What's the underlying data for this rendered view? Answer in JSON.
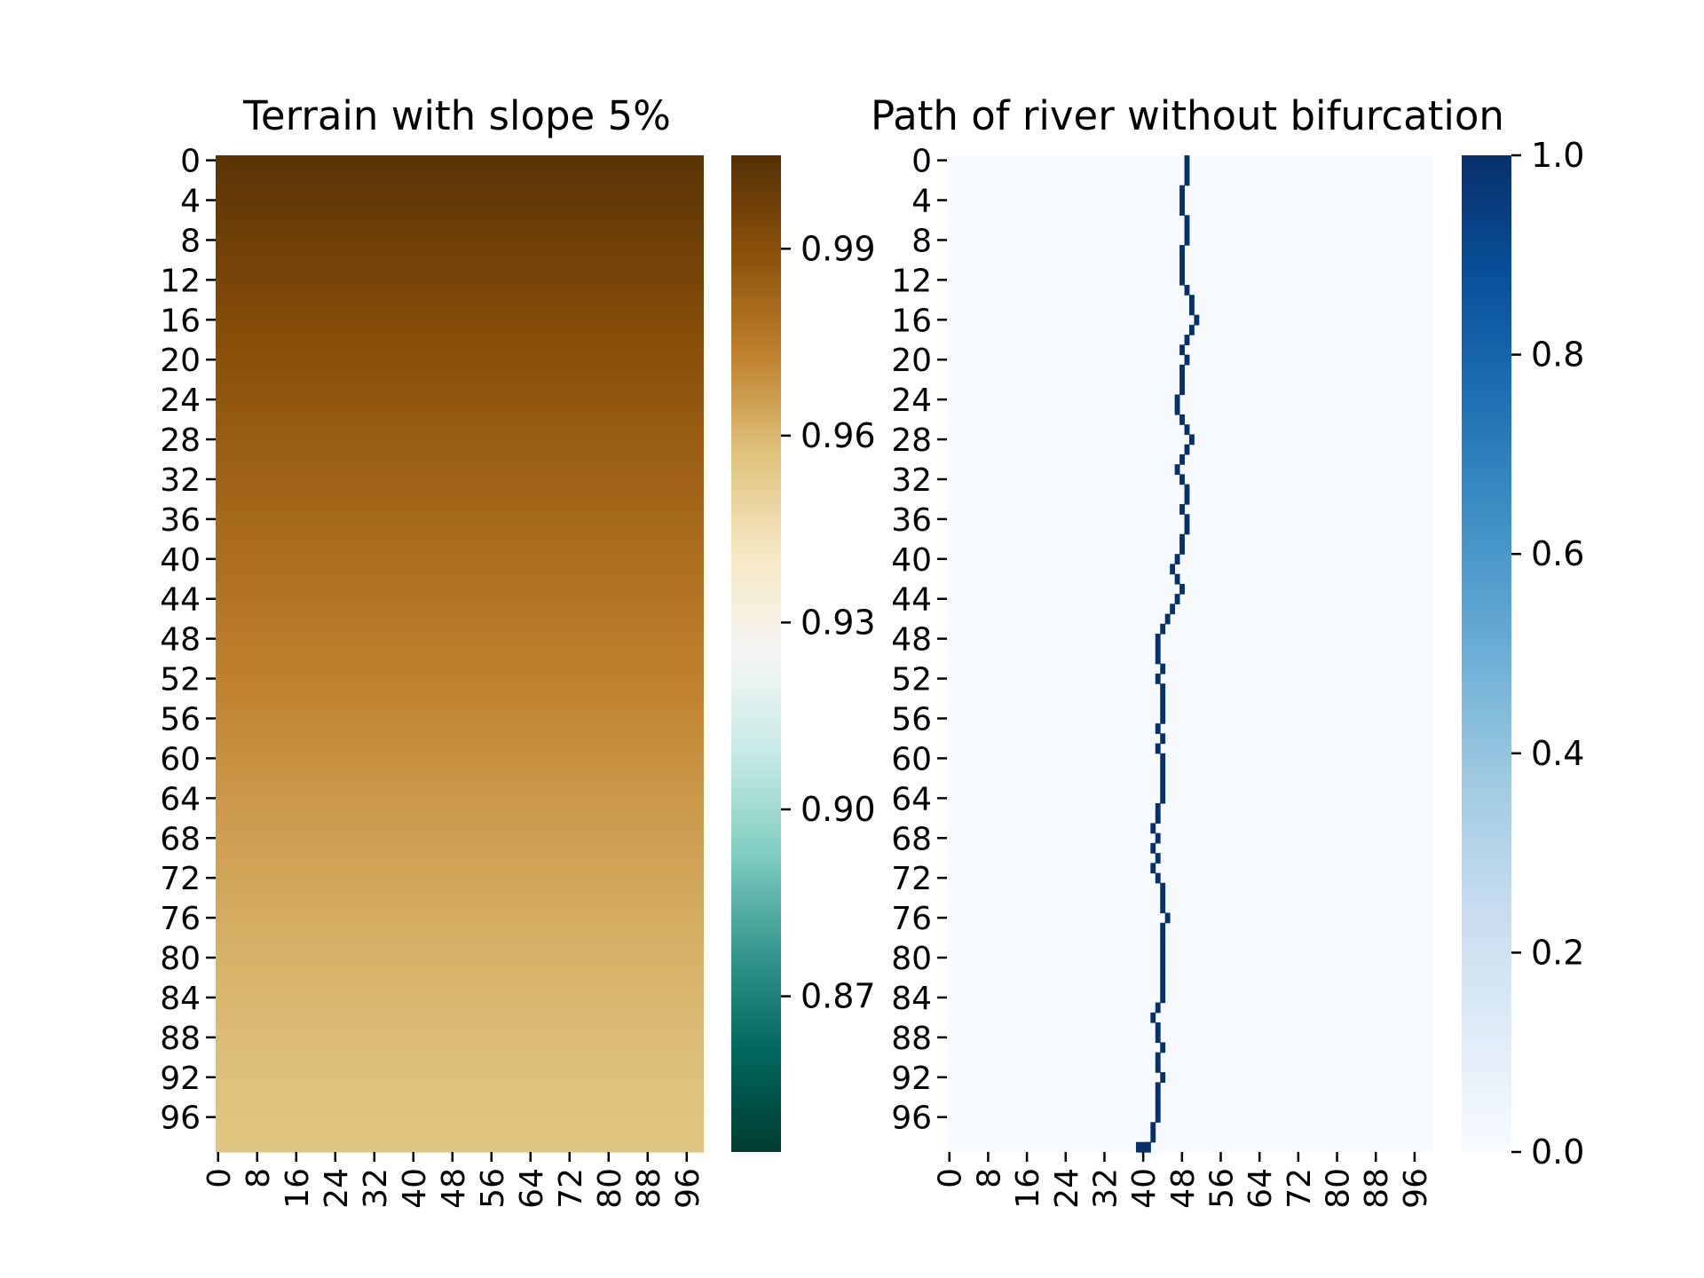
{
  "chart_data": [
    {
      "type": "heatmap",
      "title": "Terrain with slope 5%",
      "xlabel": "",
      "ylabel": "",
      "rows": 100,
      "cols": 100,
      "x_ticks": [
        "0",
        "8",
        "16",
        "24",
        "32",
        "40",
        "48",
        "56",
        "64",
        "72",
        "80",
        "88",
        "96"
      ],
      "y_ticks": [
        "0",
        "4",
        "8",
        "12",
        "16",
        "20",
        "24",
        "28",
        "32",
        "36",
        "40",
        "44",
        "48",
        "52",
        "56",
        "60",
        "64",
        "68",
        "72",
        "76",
        "80",
        "84",
        "88",
        "92",
        "96"
      ],
      "row_values": {
        "rows": [
          0,
          10,
          20,
          30,
          40,
          50,
          60,
          70,
          80,
          90,
          99
        ],
        "values": [
          1.003,
          0.996,
          0.989,
          0.984,
          0.979,
          0.974,
          0.969,
          0.965,
          0.961,
          0.958,
          0.956
        ]
      },
      "colormap": "BrBG",
      "colorbar": {
        "vmin": 0.845,
        "vmax": 1.005,
        "ticks": [
          "0.87",
          "0.90",
          "0.93",
          "0.96",
          "0.99"
        ],
        "colors": [
          "#003c30",
          "#01665e",
          "#35978f",
          "#80cdc1",
          "#c7eae5",
          "#f5f5f5",
          "#f6e8c3",
          "#dfc27d",
          "#bf812d",
          "#8c510a",
          "#543005"
        ]
      }
    },
    {
      "type": "heatmap",
      "title": "Path of river without bifurcation",
      "xlabel": "",
      "ylabel": "",
      "rows": 100,
      "cols": 100,
      "x_ticks": [
        "0",
        "8",
        "16",
        "24",
        "32",
        "40",
        "48",
        "56",
        "64",
        "72",
        "80",
        "88",
        "96"
      ],
      "y_ticks": [
        "0",
        "4",
        "8",
        "12",
        "16",
        "20",
        "24",
        "28",
        "32",
        "36",
        "40",
        "44",
        "48",
        "52",
        "56",
        "60",
        "64",
        "68",
        "72",
        "76",
        "80",
        "84",
        "88",
        "92",
        "96"
      ],
      "path_columns": [
        49,
        49,
        49,
        48,
        48,
        48,
        49,
        49,
        49,
        48,
        48,
        48,
        48,
        49,
        50,
        50,
        51,
        50,
        49,
        48,
        49,
        48,
        48,
        48,
        47,
        47,
        48,
        49,
        50,
        49,
        48,
        47,
        48,
        49,
        49,
        48,
        49,
        49,
        48,
        48,
        47,
        46,
        47,
        48,
        47,
        46,
        45,
        44,
        43,
        43,
        43,
        44,
        43,
        44,
        44,
        44,
        44,
        43,
        44,
        43,
        44,
        44,
        44,
        44,
        44,
        43,
        43,
        42,
        43,
        42,
        43,
        42,
        43,
        44,
        44,
        44,
        45,
        44,
        44,
        44,
        44,
        44,
        44,
        44,
        44,
        43,
        42,
        43,
        43,
        44,
        43,
        43,
        44,
        43,
        43,
        43,
        43,
        42,
        42,
        41
      ],
      "outlet": {
        "row": 99,
        "cols": [
          39,
          40,
          41
        ]
      },
      "colormap": "Blues",
      "colorbar": {
        "vmin": 0.0,
        "vmax": 1.0,
        "ticks": [
          "0.0",
          "0.2",
          "0.4",
          "0.6",
          "0.8",
          "1.0"
        ],
        "colors": [
          "#f7fbff",
          "#deebf7",
          "#c6dbef",
          "#9ecae1",
          "#6baed6",
          "#4292c6",
          "#2171b5",
          "#08519c",
          "#08306b"
        ]
      }
    }
  ]
}
